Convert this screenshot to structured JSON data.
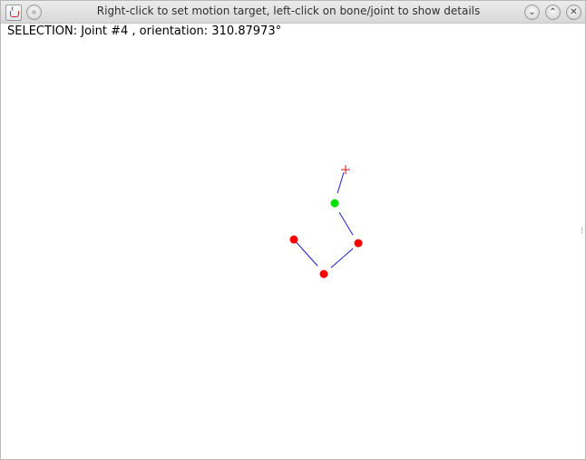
{
  "window": {
    "title": "Right-click to set motion target, left-click on bone/joint to show details",
    "buttons": {
      "minimize": "⌄",
      "maximize": "⌃",
      "close": "✕"
    }
  },
  "status": {
    "text": "SELECTION: Joint #4 , orientation: 310.87973°"
  },
  "scene": {
    "colors": {
      "bone": "#1a1ad0",
      "joint": "#ff0000",
      "selected_joint": "#00e000",
      "target": "#d01010",
      "background": "#ffffff"
    }
  }
}
